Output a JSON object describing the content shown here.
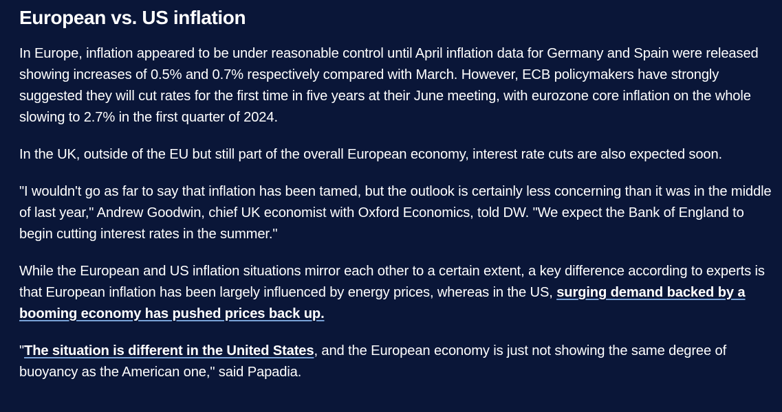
{
  "article": {
    "heading": "European vs. US inflation",
    "p1": "In Europe, inflation appeared to be under reasonable control until April inflation data for Germany and Spain were released showing increases of 0.5% and 0.7% respectively compared with March. However, ECB policymakers have strongly suggested they will cut rates for the first time in five years at their June meeting, with eurozone core inflation on the whole slowing to 2.7% in the first quarter of 2024.",
    "p2": "In the UK, outside of the EU but still part of the overall European economy, interest rate cuts are also expected soon.",
    "p3": "\"I wouldn't go as far to say that inflation has been tamed, but the outlook is certainly less concerning than it was in the middle of last year,\" Andrew Goodwin, chief UK economist with Oxford Economics, told DW. \"We expect the Bank of England to begin cutting interest rates in the summer.\"",
    "p4_text": "While the European and US inflation situations mirror each other to a certain extent, a key difference according to experts is that European inflation has been largely influenced by energy prices, whereas in the US, ",
    "p4_link": "surging demand backed by a booming economy has pushed prices back up.",
    "p5_quote_open": "\"",
    "p5_link": "The situation is different in the United States",
    "p5_text": ", and the European economy is just not showing the same degree of buoyancy as the American one,\" said Papadia."
  }
}
